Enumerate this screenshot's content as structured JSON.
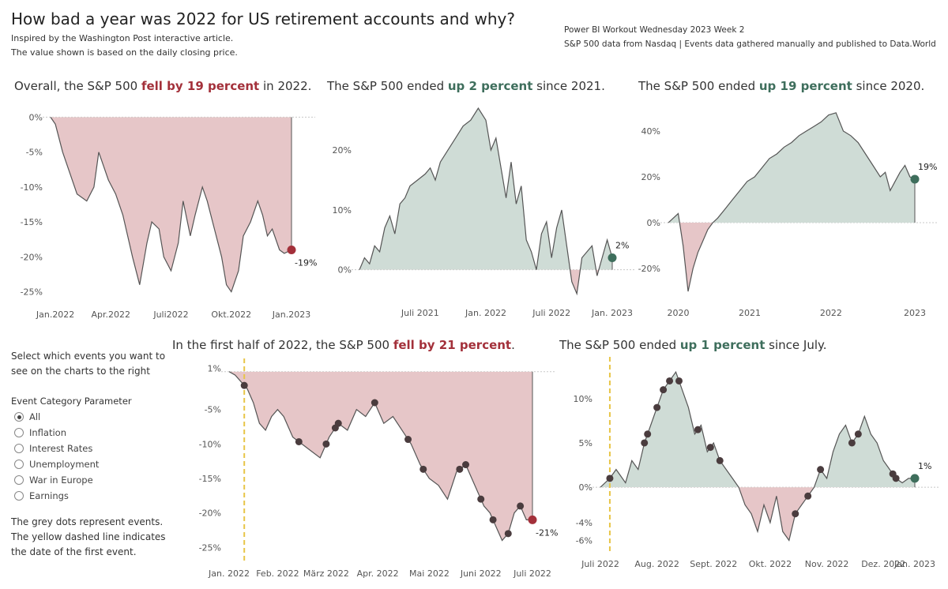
{
  "header": {
    "title": "How bad a year was 2022 for US retirement accounts and why?",
    "subtitle1": "Inspired by the Washington Post interactive article.",
    "subtitle2": "The value shown is based on the daily closing price.",
    "credit1": "Power BI Workout Wednesday 2023 Week 2",
    "credit2": "S&P 500 data from Nasdaq | Events data gathered manually and published to Data.World"
  },
  "titles": {
    "c1": {
      "pre": "Overall, the S&P 500 ",
      "hl": "fell by 19 percent",
      "post": " in 2022."
    },
    "c2": {
      "pre": "The S&P 500 ended ",
      "hl": "up 2 percent",
      "post": " since 2021."
    },
    "c3": {
      "pre": "The S&P 500 ended ",
      "hl": "up 19 percent",
      "post": " since 2020."
    },
    "c4": {
      "pre": "In the first half of 2022, the S&P 500 ",
      "hl": "fell by 21 percent",
      "post": "."
    },
    "c5": {
      "pre": "The S&P 500 ended ",
      "hl": "up 1 percent",
      "post": " since July."
    }
  },
  "sidebar": {
    "intro": "Select which events you want to see on the charts to the right",
    "param_label": "Event Category Parameter",
    "options": [
      {
        "label": "All",
        "selected": true
      },
      {
        "label": "Inflation",
        "selected": false
      },
      {
        "label": "Interest Rates",
        "selected": false
      },
      {
        "label": "Unemployment",
        "selected": false
      },
      {
        "label": "War in Europe",
        "selected": false
      },
      {
        "label": "Earnings",
        "selected": false
      }
    ],
    "note": "The grey dots represent events. The yellow dashed line indicates the date of the first event."
  },
  "colors": {
    "neg_fill": "#e6c6c8",
    "pos_fill": "#cfdcd6",
    "line": "#555555",
    "neg_dot": "#a3303a",
    "pos_dot": "#3e6e5c",
    "event_dot": "#4a3c3e",
    "first_event": "#e8c547"
  },
  "chart_data": [
    {
      "id": "c1",
      "type": "area",
      "title": "Overall, the S&P 500 fell by 19 percent in 2022.",
      "x_tick_labels": [
        "Jan.2022",
        "Apr.2022",
        "Juli2022",
        "Okt.2022",
        "Jan.2023"
      ],
      "y_tick_labels": [
        "0%",
        "-5%",
        "-10%",
        "-15%",
        "-20%",
        "-25%"
      ],
      "ylim": [
        -25.5,
        0.5
      ],
      "end_label": "-19%",
      "x": [
        0,
        0.02,
        0.05,
        0.08,
        0.11,
        0.15,
        0.18,
        0.2,
        0.22,
        0.24,
        0.27,
        0.3,
        0.32,
        0.34,
        0.37,
        0.4,
        0.42,
        0.45,
        0.47,
        0.5,
        0.53,
        0.55,
        0.58,
        0.6,
        0.63,
        0.65,
        0.68,
        0.71,
        0.73,
        0.75,
        0.78,
        0.8,
        0.83,
        0.86,
        0.88,
        0.9,
        0.92,
        0.95,
        0.97,
        1.0
      ],
      "values": [
        0,
        -1,
        -5,
        -8,
        -11,
        -12,
        -10,
        -5,
        -7,
        -9,
        -11,
        -14,
        -17,
        -20,
        -24,
        -18,
        -15,
        -16,
        -20,
        -22,
        -18,
        -12,
        -17,
        -14,
        -10,
        -12,
        -16,
        -20,
        -24,
        -25,
        -22,
        -17,
        -15,
        -12,
        -14,
        -17,
        -16,
        -19,
        -19.5,
        -19
      ]
    },
    {
      "id": "c2",
      "type": "area",
      "title": "The S&P 500 ended up 2 percent since 2021.",
      "x_tick_labels": [
        "Juli 2021",
        "Jan. 2022",
        "Juli 2022",
        "Jan. 2023"
      ],
      "y_tick_labels": [
        "0%",
        "10%",
        "20%"
      ],
      "ylim": [
        -4,
        27
      ],
      "end_label": "2%",
      "x": [
        0,
        0.02,
        0.04,
        0.06,
        0.08,
        0.1,
        0.12,
        0.14,
        0.16,
        0.18,
        0.2,
        0.23,
        0.26,
        0.28,
        0.3,
        0.32,
        0.35,
        0.38,
        0.41,
        0.44,
        0.47,
        0.5,
        0.52,
        0.54,
        0.56,
        0.58,
        0.6,
        0.62,
        0.64,
        0.66,
        0.68,
        0.7,
        0.72,
        0.74,
        0.76,
        0.78,
        0.8,
        0.82,
        0.84,
        0.86,
        0.88,
        0.9,
        0.92,
        0.94,
        0.96,
        0.98,
        1.0
      ],
      "values": [
        0,
        2,
        1,
        4,
        3,
        7,
        9,
        6,
        11,
        12,
        14,
        15,
        16,
        17,
        15,
        18,
        20,
        22,
        24,
        25,
        27,
        25,
        20,
        22,
        17,
        12,
        18,
        11,
        14,
        5,
        3,
        0,
        6,
        8,
        2,
        7,
        10,
        4,
        -2,
        -4,
        2,
        3,
        4,
        -1,
        2,
        5,
        2
      ]
    },
    {
      "id": "c3",
      "type": "area",
      "title": "The S&P 500 ended up 19 percent since 2020.",
      "x_tick_labels": [
        "2020",
        "2021",
        "2022",
        "2023"
      ],
      "y_tick_labels": [
        "-20%",
        "0%",
        "20%",
        "40%"
      ],
      "ylim": [
        -31,
        50
      ],
      "end_label": "19%",
      "x": [
        0,
        0.02,
        0.04,
        0.06,
        0.08,
        0.1,
        0.12,
        0.14,
        0.16,
        0.18,
        0.2,
        0.23,
        0.26,
        0.29,
        0.32,
        0.35,
        0.38,
        0.41,
        0.44,
        0.47,
        0.5,
        0.53,
        0.56,
        0.59,
        0.62,
        0.65,
        0.68,
        0.71,
        0.74,
        0.77,
        0.8,
        0.83,
        0.86,
        0.88,
        0.9,
        0.92,
        0.94,
        0.96,
        0.98,
        1.0
      ],
      "values": [
        0,
        2,
        4,
        -10,
        -30,
        -20,
        -13,
        -8,
        -3,
        0,
        2,
        6,
        10,
        14,
        18,
        20,
        24,
        28,
        30,
        33,
        35,
        38,
        40,
        42,
        44,
        47,
        48,
        40,
        38,
        35,
        30,
        25,
        20,
        22,
        14,
        18,
        22,
        25,
        20,
        19
      ]
    },
    {
      "id": "c4",
      "type": "area",
      "title": "In the first half of 2022, the S&P 500 fell by 21 percent.",
      "x_tick_labels": [
        "Jan. 2022",
        "Feb. 2022",
        "März 2022",
        "Apr. 2022",
        "Mai 2022",
        "Juni 2022",
        "Juli 2022"
      ],
      "y_tick_labels": [
        "1%",
        "-5%",
        "-10%",
        "-15%",
        "-20%",
        "-25%"
      ],
      "ylim": [
        -26,
        1.5
      ],
      "end_label": "-21%",
      "x": [
        0,
        0.02,
        0.04,
        0.06,
        0.08,
        0.1,
        0.12,
        0.14,
        0.16,
        0.18,
        0.21,
        0.24,
        0.27,
        0.3,
        0.33,
        0.36,
        0.39,
        0.42,
        0.45,
        0.48,
        0.51,
        0.54,
        0.57,
        0.6,
        0.63,
        0.66,
        0.69,
        0.72,
        0.75,
        0.78,
        0.8,
        0.82,
        0.84,
        0.86,
        0.88,
        0.9,
        0.92,
        0.94,
        0.96,
        0.98,
        1.0
      ],
      "values": [
        0.5,
        0,
        -1,
        -2,
        -4,
        -7,
        -8,
        -6,
        -5,
        -6,
        -9,
        -10,
        -11,
        -12,
        -9,
        -7,
        -8,
        -5,
        -6,
        -4,
        -7,
        -6,
        -8,
        -10,
        -13,
        -15,
        -16,
        -18,
        -14,
        -13,
        -15,
        -17,
        -19,
        -20,
        -22,
        -24,
        -23,
        -20,
        -19,
        -21,
        -21
      ]
    },
    {
      "id": "c5",
      "type": "area",
      "title": "The S&P 500 ended up 1 percent since July.",
      "x_tick_labels": [
        "Juli 2022",
        "Aug. 2022",
        "Sept. 2022",
        "Okt. 2022",
        "Nov. 2022",
        "Dez. 2022",
        "Jan. 2023"
      ],
      "y_tick_labels": [
        "10%",
        "5%",
        "0%",
        "-4%",
        "-6%"
      ],
      "ylim": [
        -6.5,
        14
      ],
      "end_label": "1%",
      "x": [
        0,
        0.03,
        0.05,
        0.08,
        0.1,
        0.12,
        0.14,
        0.16,
        0.18,
        0.2,
        0.22,
        0.24,
        0.26,
        0.28,
        0.3,
        0.32,
        0.34,
        0.36,
        0.38,
        0.4,
        0.42,
        0.44,
        0.46,
        0.48,
        0.5,
        0.52,
        0.54,
        0.56,
        0.58,
        0.6,
        0.62,
        0.64,
        0.66,
        0.68,
        0.7,
        0.72,
        0.74,
        0.76,
        0.78,
        0.8,
        0.82,
        0.84,
        0.86,
        0.88,
        0.9,
        0.92,
        0.94,
        0.96,
        0.98,
        1.0
      ],
      "values": [
        0,
        1,
        2,
        0.5,
        3,
        2,
        5,
        7,
        9,
        11,
        12,
        13,
        11,
        9,
        6,
        7,
        4,
        5,
        3,
        2,
        1,
        0,
        -2,
        -3,
        -5,
        -2,
        -4,
        -1,
        -5,
        -6,
        -3,
        -2,
        -1,
        0,
        2,
        1,
        4,
        6,
        7,
        5,
        6,
        8,
        6,
        5,
        3,
        2,
        1,
        0.5,
        1,
        1
      ]
    }
  ]
}
